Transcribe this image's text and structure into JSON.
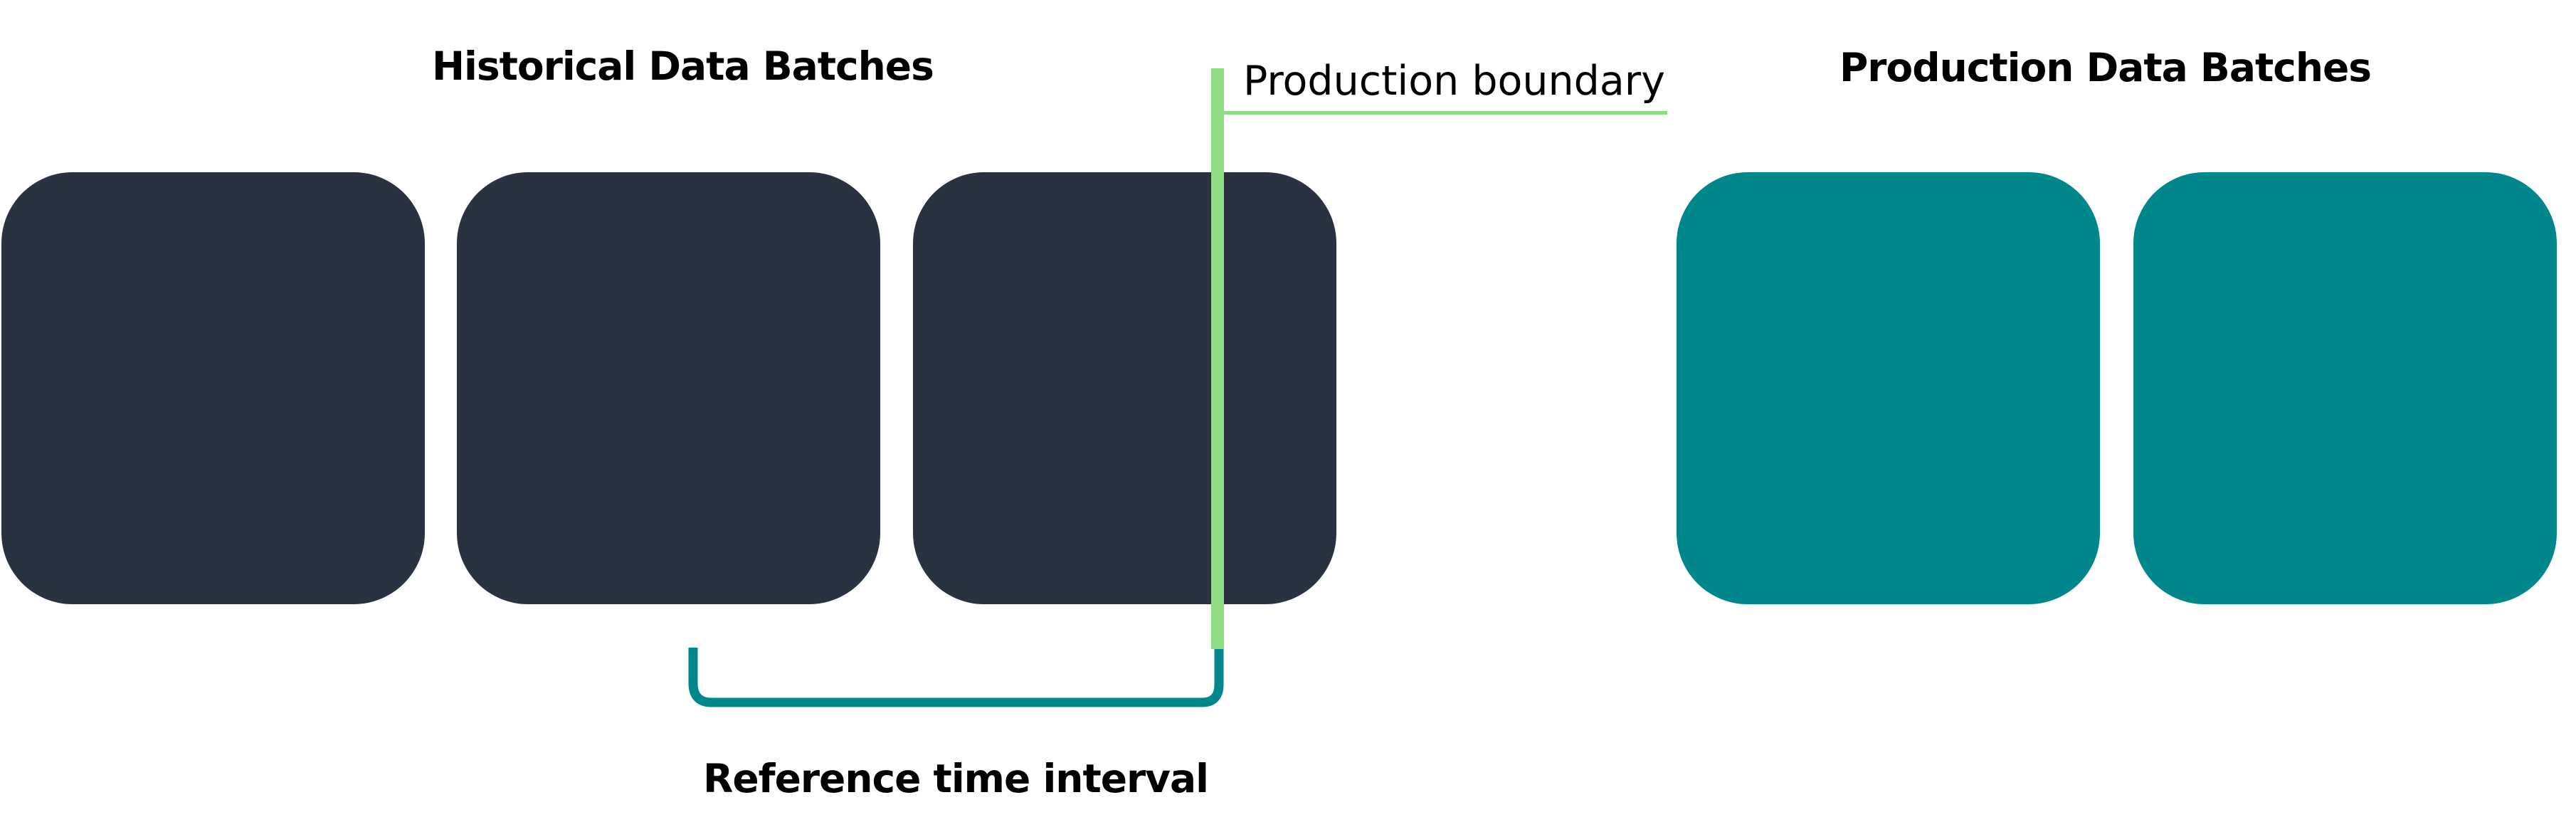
{
  "headings": {
    "historical": "Historical Data Batches",
    "production": "Production Data Batches"
  },
  "boundary": {
    "label": "Production boundary"
  },
  "interval": {
    "label": "Reference time interval"
  },
  "colors": {
    "historical_batch": "#283241",
    "production_batch": "#00878c",
    "boundary": "#90dc82",
    "bracket": "#00878c",
    "text": "#000000",
    "background": "#ffffff"
  }
}
